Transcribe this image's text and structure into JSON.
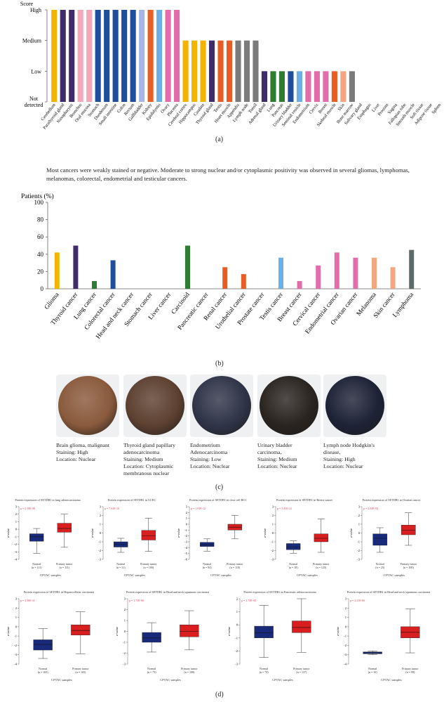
{
  "panel_labels": {
    "a": "(a)",
    "b": "(b)",
    "c": "(c)",
    "d": "(d)"
  },
  "chart_data": [
    {
      "type": "bar",
      "ylabel": "Score",
      "yticks": [
        "Not detected",
        "Low",
        "Medium",
        "High"
      ],
      "ylim": [
        0,
        3
      ],
      "categories": [
        "Cerebellum",
        "Parathyroid gland",
        "Nasopharynx",
        "Bronchus",
        "Oral mucosa",
        "Stomach",
        "Duodenum",
        "Small intestine",
        "Colon",
        "Rectum",
        "Gallbladder",
        "Kidney",
        "Epididymis",
        "Ovary",
        "Placenta",
        "Cerebral cortex",
        "Hippocampus",
        "Caudate",
        "Thyroid gland",
        "Testis",
        "Heart muscle",
        "Appendix",
        "Lymph node",
        "Tonsil",
        "Adrenal gland",
        "Lung",
        "Pancreas",
        "Urinary bladder",
        "Seminal vesicle",
        "Endometrium",
        "Cervix",
        "Breast",
        "Skeletal muscle",
        "Skin",
        "Bone marrow",
        "Salivary gland",
        "Esophagus",
        "Liver",
        "Prostate",
        "Vagina",
        "Fallopian tube",
        "Smooth muscle",
        "Soft tissue",
        "Adipose tissue",
        "Spleen"
      ],
      "values": [
        3,
        3,
        3,
        3,
        3,
        3,
        3,
        3,
        3,
        3,
        3,
        3,
        3,
        3,
        3,
        2,
        2,
        2,
        2,
        2,
        2,
        2,
        2,
        2,
        1,
        1,
        1,
        1,
        1,
        1,
        1,
        1,
        1,
        1,
        1,
        0,
        0,
        0,
        0,
        0,
        0,
        0,
        0,
        0,
        0
      ],
      "colors": [
        "#f2b400",
        "#3f2d69",
        "#3f2d69",
        "#f4a7b9",
        "#f4a7b9",
        "#1f4e9c",
        "#1f4e9c",
        "#1f4e9c",
        "#1f4e9c",
        "#1f4e9c",
        "#a9b6e3",
        "#e85d24",
        "#6aafe6",
        "#e16ea8",
        "#e16ea8",
        "#f2b400",
        "#f2b400",
        "#f2b400",
        "#3f2d69",
        "#e85d24",
        "#e85d24",
        "#7b7b7b",
        "#7b7b7b",
        "#7b7b7b",
        "#3f2d69",
        "#2e7d32",
        "#2e7d32",
        "#1f4e9c",
        "#6aafe6",
        "#e16ea8",
        "#e16ea8",
        "#e16ea8",
        "#e85d24",
        "#f4a582",
        "#7b7b7b",
        "#999",
        "#999",
        "#999",
        "#999",
        "#999",
        "#999",
        "#999",
        "#999",
        "#999",
        "#999"
      ]
    },
    {
      "type": "bar",
      "ylabel": "Patients (%)",
      "ylim": [
        0,
        100
      ],
      "yticks": [
        0,
        20,
        40,
        60,
        80,
        100
      ],
      "categories": [
        "Glioma",
        "Thyroid cancer",
        "Lung cancer",
        "Colorectal cancer",
        "Head and neck cancer",
        "Stomach cancer",
        "Liver cancer",
        "Carcinoid",
        "Pancreatic cancer",
        "Renal cancer",
        "Urothelial cancer",
        "Prostate cancer",
        "Testis cancer",
        "Breast cancer",
        "Cervical cancer",
        "Endometrial cancer",
        "Ovarian cancer",
        "Melanoma",
        "Skin cancer",
        "Lymphoma"
      ],
      "values": [
        42,
        50,
        9,
        33,
        0,
        0,
        0,
        50,
        0,
        25,
        17,
        0,
        36,
        9,
        27,
        42,
        36,
        36,
        25,
        45
      ],
      "colors": [
        "#f2b400",
        "#3f2d69",
        "#2e7d32",
        "#1f4e9c",
        "#1f4e9c",
        "#1f4e9c",
        "#1f4e9c",
        "#2e7d32",
        "#2e7d32",
        "#e85d24",
        "#e85d24",
        "#3f2d69",
        "#6aafe6",
        "#e16ea8",
        "#e16ea8",
        "#e16ea8",
        "#e16ea8",
        "#f4a582",
        "#f4a582",
        "#5f6b6b"
      ]
    },
    {
      "type": "boxplot",
      "panels": [
        {
          "title": "Protein expression of SETDB1 in lung adenocarcinoma",
          "p": "p = 2.18E-08",
          "groups": [
            {
              "name": "Normal",
              "n": "(n = 111)",
              "q": [
                -1.6,
                -1.0,
                -0.6
              ],
              "w": [
                -3.2,
                0.1
              ]
            },
            {
              "name": "Primary tumor",
              "n": "(n = 111)",
              "q": [
                -0.4,
                0.1,
                0.8
              ],
              "w": [
                -2.4,
                2.0
              ]
            }
          ],
          "ylim": [
            -4,
            3
          ]
        },
        {
          "title": "Protein expression of SETDB1 in UCEC",
          "p": "p = 7.02E-10",
          "groups": [
            {
              "name": "Normal",
              "n": "(n = 31)",
              "q": [
                -1.6,
                -1.3,
                -1.0
              ],
              "w": [
                -2.2,
                -0.6
              ]
            },
            {
              "name": "Primary tumor",
              "n": "(n = 100)",
              "q": [
                -0.8,
                -0.3,
                0.3
              ],
              "w": [
                -2.1,
                1.7
              ]
            }
          ],
          "ylim": [
            -3,
            3
          ]
        },
        {
          "title": "Protein expression of SETDB1 in clear cell RCC",
          "p": "p = 1.91E-12",
          "groups": [
            {
              "name": "Normal",
              "n": "(n = 84)",
              "q": [
                -3.8,
                -3.5,
                -3.1
              ],
              "w": [
                -4.6,
                -2.5
              ]
            },
            {
              "name": "Primary tumor",
              "n": "(n = 110)",
              "q": [
                -1.0,
                -0.5,
                0.0
              ],
              "w": [
                -2.5,
                1.5
              ]
            }
          ],
          "ylim": [
            -6,
            3
          ]
        },
        {
          "title": "Protein expression of SETDB1 in Breast cancer",
          "p": "p = 3.45E-12",
          "groups": [
            {
              "name": "Normal",
              "n": "(n = 18)",
              "q": [
                -1.9,
                -1.6,
                -1.2
              ],
              "w": [
                -2.3,
                -0.9
              ]
            },
            {
              "name": "Primary tumor",
              "n": "(n = 125)",
              "q": [
                -1.0,
                -0.6,
                -0.1
              ],
              "w": [
                -2.2,
                1.6
              ]
            }
          ],
          "ylim": [
            -3,
            3
          ]
        },
        {
          "title": "Protein expression of SETDB1 in Ovarian cancer",
          "p": "p = 3.04E-03",
          "groups": [
            {
              "name": "Normal",
              "n": "(n = 25)",
              "q": [
                -1.4,
                -0.6,
                -0.1
              ],
              "w": [
                -2.2,
                0.6
              ]
            },
            {
              "name": "Primary tumor",
              "n": "(n = 100)",
              "q": [
                -0.2,
                0.3,
                0.9
              ],
              "w": [
                -1.4,
                2.3
              ]
            }
          ],
          "ylim": [
            -3,
            3
          ]
        },
        {
          "title": "Protein expression of SETDB1 in Hepatocellular carcinoma",
          "p": "p = 3.56E-41",
          "groups": [
            {
              "name": "Normal",
              "n": "(n = 165)",
              "q": [
                -2.5,
                -1.9,
                -1.4
              ],
              "w": [
                -3.4,
                -0.2
              ]
            },
            {
              "name": "Primary tumor",
              "n": "(n = 165)",
              "q": [
                -0.9,
                -0.4,
                0.2
              ],
              "w": [
                -2.9,
                1.6
              ]
            }
          ],
          "ylim": [
            -4,
            3
          ]
        },
        {
          "title": "Protein expression of SETDB1 in Head and neck squamous carcinoma",
          "p": "p = 1.71E-06",
          "groups": [
            {
              "name": "Normal",
              "n": "(n = 71)",
              "q": [
                -1.0,
                -0.6,
                -0.1
              ],
              "w": [
                -1.9,
                0.8
              ]
            },
            {
              "name": "Primary tumor",
              "n": "(n = 108)",
              "q": [
                -0.5,
                0.0,
                0.6
              ],
              "w": [
                -1.7,
                1.9
              ]
            }
          ],
          "ylim": [
            -3,
            3
          ]
        },
        {
          "title": "Protein expression of SETDB1 in Pancreatic adenocarcinoma",
          "p": "p = 3.73E-02",
          "groups": [
            {
              "name": "Normal",
              "n": "(n = 74)",
              "q": [
                -1.0,
                -0.6,
                -0.1
              ],
              "w": [
                -2.5,
                1.5
              ]
            },
            {
              "name": "Primary tumor",
              "n": "(n = 137)",
              "q": [
                -0.6,
                -0.2,
                0.3
              ],
              "w": [
                -2.1,
                2.0
              ]
            }
          ],
          "ylim": [
            -3,
            2
          ]
        },
        {
          "title": "Protein expression of SETDB1 in Head and neck squamous carcinoma",
          "p": "p = 2.21E-06",
          "groups": [
            {
              "name": "Normal",
              "n": "(n = 10)",
              "q": [
                -2.9,
                -2.8,
                -2.7
              ],
              "w": [
                -3.0,
                -2.6
              ]
            },
            {
              "name": "Primary tumor",
              "n": "(n = 99)",
              "q": [
                -1.2,
                -0.6,
                0.0
              ],
              "w": [
                -2.8,
                1.9
              ]
            }
          ],
          "ylim": [
            -4,
            3
          ]
        }
      ],
      "xlabel": "CPTAC samples",
      "ylabel": "z-value",
      "normal_color": "#1a2a7a",
      "tumor_color": "#d81e1e"
    }
  ],
  "summary_text": "Most cancers were weakly stained or negative. Moderate to strong nuclear and/or cytoplasmic positivity was observed in several gliomas, lymphomas, melanomas, colorectal, endometrial and testicular cancers.",
  "tissues": [
    {
      "lines": [
        "Brain glioma, malignant",
        "Staining: High",
        "Location: Nuclear"
      ],
      "tone": "#8a5a3c"
    },
    {
      "lines": [
        "Thyroid gland papillary",
        "adenocarcinoma",
        "Staining: Medium",
        "Location: Cytoplasmic",
        "membranous nuclear"
      ],
      "tone": "#5d4030"
    },
    {
      "lines": [
        "Endometrium",
        "Adenocarcinoma",
        "Staining: Low",
        "Location: Nuclear"
      ],
      "tone": "#303448"
    },
    {
      "lines": [
        "Urinary bladder",
        "carcinoma,",
        "Staining: Medium",
        "Location: Nuclear"
      ],
      "tone": "#2a2420"
    },
    {
      "lines": [
        "Lymph node Hodgkin's",
        "disease,",
        "Staining: High",
        "Location: Nuclear"
      ],
      "tone": "#1e2236"
    }
  ]
}
